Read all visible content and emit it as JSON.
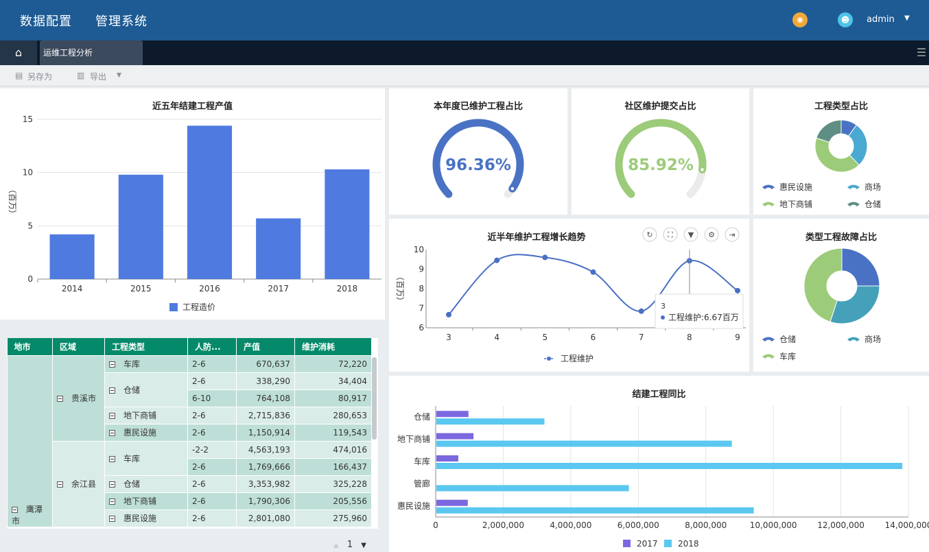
{
  "header": {
    "brand": "数据配置",
    "brand2": "管理系统",
    "user": "admin",
    "bell_icon": "bell-icon",
    "avatar_icon": "user-avatar-icon"
  },
  "tabs": {
    "home_icon": "home-icon",
    "active": "运维工程分析",
    "menu_icon": "hamburger-menu-icon"
  },
  "toolbar": {
    "save_as": "另存为",
    "export": "导出"
  },
  "bar_panel": {
    "title": "近五年结建工程产值",
    "ylabel": "（百万）",
    "legend": "工程造价"
  },
  "gauge1": {
    "title": "本年度已维护工程占比",
    "value": "96.36%",
    "pct": 96.36,
    "color": "#4a72c4"
  },
  "gauge2": {
    "title": "社区维护提交占比",
    "value": "85.92%",
    "pct": 85.92,
    "color": "#9ccb7a"
  },
  "pie1": {
    "title": "工程类型占比",
    "legend": [
      "惠民设施",
      "商场",
      "地下商铺",
      "仓储"
    ]
  },
  "line_panel": {
    "title": "近半年维护工程增长趋势",
    "ylabel": "（百万）",
    "legend": "工程维护",
    "tooltip_x": "3",
    "tooltip_text": "工程维护:6.67百万"
  },
  "pie2": {
    "title": "类型工程故障占比",
    "legend": [
      "仓储",
      "商场",
      "车库"
    ]
  },
  "hbar_panel": {
    "title": "结建工程同比",
    "legend": [
      "2017",
      "2018"
    ]
  },
  "table": {
    "headers": [
      "地市",
      "区域",
      "工程类型",
      "人防...",
      "产值",
      "维护消耗"
    ],
    "city": "鹰潭市",
    "district1": "贵溪市",
    "district2": "余江县",
    "rows": [
      {
        "type": "车库",
        "level": "2-6",
        "value": "670,637",
        "cost": "72,220"
      },
      {
        "type": "仓储",
        "level": "2-6",
        "value": "338,290",
        "cost": "34,404"
      },
      {
        "type": "",
        "level": "6-10",
        "value": "764,108",
        "cost": "80,917"
      },
      {
        "type": "地下商铺",
        "level": "2-6",
        "value": "2,715,836",
        "cost": "280,653"
      },
      {
        "type": "惠民设施",
        "level": "2-6",
        "value": "1,150,914",
        "cost": "119,543"
      },
      {
        "type": "车库",
        "level": "-2-2",
        "value": "4,563,193",
        "cost": "474,016"
      },
      {
        "type": "",
        "level": "2-6",
        "value": "1,769,666",
        "cost": "166,437"
      },
      {
        "type": "仓储",
        "level": "2-6",
        "value": "3,353,982",
        "cost": "325,228"
      },
      {
        "type": "地下商铺",
        "level": "2-6",
        "value": "1,790,306",
        "cost": "205,556"
      },
      {
        "type": "惠民设施",
        "level": "2-6",
        "value": "2,801,080",
        "cost": "275,960"
      }
    ]
  },
  "pager": {
    "page": "1"
  },
  "chart_data": [
    {
      "type": "bar",
      "title": "近五年结建工程产值",
      "categories": [
        "2014",
        "2015",
        "2016",
        "2017",
        "2018"
      ],
      "series": [
        {
          "name": "工程造价",
          "values": [
            4.2,
            9.8,
            14.4,
            5.7,
            10.3
          ]
        }
      ],
      "ylim": [
        0,
        15
      ],
      "yticks": [
        0,
        5,
        10,
        15
      ],
      "ylabel": "（百万）"
    },
    {
      "type": "line",
      "title": "近半年维护工程增长趋势",
      "x": [
        "3",
        "4",
        "5",
        "6",
        "7",
        "8",
        "9"
      ],
      "series": [
        {
          "name": "工程维护",
          "values": [
            6.67,
            9.45,
            9.6,
            8.85,
            6.85,
            9.43,
            7.9
          ]
        }
      ],
      "ylim": [
        6,
        10
      ],
      "yticks": [
        6,
        7,
        8,
        9,
        10
      ],
      "ylabel": "（百万）"
    },
    {
      "type": "pie",
      "title": "工程类型占比",
      "slices": [
        {
          "name": "惠民设施",
          "value": 10,
          "color": "#4a72c4"
        },
        {
          "name": "商场",
          "value": 28,
          "color": "#4aa9d0"
        },
        {
          "name": "地下商铺",
          "value": 42,
          "color": "#9ccb7a"
        },
        {
          "name": "仓储",
          "value": 20,
          "color": "#5f8f84"
        }
      ]
    },
    {
      "type": "pie",
      "title": "类型工程故障占比",
      "slices": [
        {
          "name": "仓储",
          "value": 25,
          "color": "#4a72c4"
        },
        {
          "name": "商场",
          "value": 30,
          "color": "#45a1ba"
        },
        {
          "name": "车库",
          "value": 45,
          "color": "#9ccb7a"
        }
      ]
    },
    {
      "type": "bar",
      "orientation": "horizontal",
      "title": "结建工程同比",
      "categories": [
        "仓储",
        "地下商铺",
        "车库",
        "管廊",
        "惠民设施"
      ],
      "series": [
        {
          "name": "2017",
          "values": [
            950000,
            1100000,
            650000,
            0,
            930000
          ],
          "color": "#7b68e0"
        },
        {
          "name": "2018",
          "values": [
            3200000,
            8750000,
            13800000,
            5700000,
            9400000
          ],
          "color": "#5ac8f0"
        }
      ],
      "xlim": [
        0,
        14000000
      ],
      "xticks": [
        "0",
        "2,000,000",
        "4,000,000",
        "6,000,000",
        "8,000,000",
        "10,000,000",
        "12,000,000",
        "14,000,000"
      ]
    }
  ]
}
